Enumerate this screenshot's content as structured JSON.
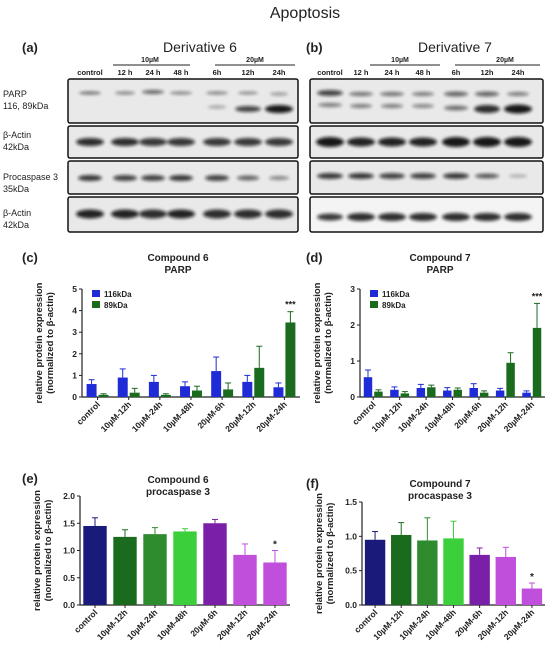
{
  "figure": {
    "title": "Apoptosis",
    "colors": {
      "blue": "#1f2bd6",
      "darkgreen": "#1b6b1e",
      "navy": "#1a1a7a",
      "midgreen": "#2e8b2e",
      "green": "#3ccf3c",
      "purple": "#7a1fa8",
      "violet": "#c04fdc"
    }
  },
  "blots": {
    "a": {
      "letter": "(a)",
      "title": "Derivative 6",
      "group1": "10µM",
      "group2": "20µM",
      "lanes": [
        "control",
        "12 h",
        "24 h",
        "48 h",
        "6h",
        "12h",
        "24h"
      ]
    },
    "b": {
      "letter": "(b)",
      "title": "Derivative 7",
      "group1": "10µM",
      "group2": "20µM",
      "lanes": [
        "control",
        "12 h",
        "24 h",
        "48 h",
        "6h",
        "12h",
        "24h"
      ]
    },
    "row_labels": [
      [
        "PARP",
        "116, 89kDa"
      ],
      [
        "β-Actin",
        "42kDa"
      ],
      [
        "Procaspase 3",
        "35kDa"
      ],
      [
        "β-Actin",
        "42kDa"
      ]
    ]
  },
  "chart_data": [
    {
      "panel": "(c)",
      "type": "bar",
      "title": "Compound 6",
      "subtitle": "PARP",
      "ylabel": [
        "relative protein expression",
        "(normalized to β-actin)"
      ],
      "ylim": [
        0,
        5
      ],
      "yticks": [
        0,
        1,
        2,
        3,
        4,
        5
      ],
      "categories": [
        "control",
        "10µM-12h",
        "10µM-24h",
        "10µM-48h",
        "20µM-6h",
        "20µM-12h",
        "20µM-24h"
      ],
      "series": [
        {
          "name": "116kDa",
          "color": "#1f2bd6",
          "values": [
            0.6,
            0.9,
            0.7,
            0.5,
            1.2,
            0.7,
            0.45
          ],
          "errors": [
            0.2,
            0.4,
            0.3,
            0.2,
            0.65,
            0.3,
            0.2
          ]
        },
        {
          "name": "89kDa",
          "color": "#1b6b1e",
          "values": [
            0.1,
            0.2,
            0.1,
            0.3,
            0.35,
            1.35,
            3.45
          ],
          "errors": [
            0.05,
            0.2,
            0.05,
            0.2,
            0.3,
            1.0,
            0.5
          ]
        }
      ],
      "annotations": [
        {
          "category": "20µM-24h",
          "series": 1,
          "text": "***"
        }
      ]
    },
    {
      "panel": "(d)",
      "type": "bar",
      "title": "Compound 7",
      "subtitle": "PARP",
      "ylabel": [
        "relative protein expression",
        "(normalized to β-actin)"
      ],
      "ylim": [
        0,
        3
      ],
      "yticks": [
        0,
        1,
        2,
        3
      ],
      "categories": [
        "control",
        "10µM-12h",
        "10µM-24h",
        "10µM-48h",
        "20µM-6h",
        "20µM-12h",
        "20µM-24h"
      ],
      "series": [
        {
          "name": "116kDa",
          "color": "#1f2bd6",
          "values": [
            0.55,
            0.2,
            0.25,
            0.18,
            0.25,
            0.18,
            0.12
          ],
          "errors": [
            0.2,
            0.08,
            0.1,
            0.08,
            0.12,
            0.06,
            0.05
          ]
        },
        {
          "name": "89kDa",
          "color": "#1b6b1e",
          "values": [
            0.15,
            0.1,
            0.27,
            0.2,
            0.12,
            0.95,
            1.92
          ],
          "errors": [
            0.05,
            0.05,
            0.06,
            0.05,
            0.05,
            0.28,
            0.68
          ]
        }
      ],
      "annotations": [
        {
          "category": "20µM-24h",
          "series": 1,
          "text": "***"
        }
      ]
    },
    {
      "panel": "(e)",
      "type": "bar",
      "title": "Compound 6",
      "subtitle": "procaspase 3",
      "ylabel": [
        "relative protein expression",
        "(normalized to β-actin)"
      ],
      "ylim": [
        0,
        2.0
      ],
      "yticks": [
        0.0,
        0.5,
        1.0,
        1.5,
        2.0
      ],
      "tickDecimals": 1,
      "categories": [
        "control",
        "10µM-12h",
        "10µM-24h",
        "10µM-48h",
        "20µM-6h",
        "20µM-12h",
        "20µM-24h"
      ],
      "values": [
        1.45,
        1.25,
        1.3,
        1.35,
        1.5,
        0.92,
        0.78
      ],
      "errors": [
        0.15,
        0.13,
        0.12,
        0.05,
        0.07,
        0.2,
        0.22
      ],
      "colors": [
        "#1a1a7a",
        "#1b6b1e",
        "#2e8b2e",
        "#3ccf3c",
        "#7a1fa8",
        "#c04fdc",
        "#c04fdc"
      ],
      "annotations": [
        {
          "category": "20µM-24h",
          "text": "*"
        }
      ]
    },
    {
      "panel": "(f)",
      "type": "bar",
      "title": "Compound 7",
      "subtitle": "procaspase 3",
      "ylabel": [
        "relative protein expression",
        "(normalized to β-actin)"
      ],
      "ylim": [
        0,
        1.5
      ],
      "yticks": [
        0.0,
        0.5,
        1.0,
        1.5
      ],
      "tickDecimals": 1,
      "categories": [
        "control",
        "10µM-12h",
        "10µM-24h",
        "10µM-48h",
        "20µM-6h",
        "20µM-12h",
        "20µM-24h"
      ],
      "values": [
        0.95,
        1.02,
        0.94,
        0.97,
        0.73,
        0.7,
        0.24
      ],
      "errors": [
        0.12,
        0.18,
        0.33,
        0.25,
        0.1,
        0.14,
        0.08
      ],
      "colors": [
        "#1a1a7a",
        "#1b6b1e",
        "#2e8b2e",
        "#3ccf3c",
        "#7a1fa8",
        "#c04fdc",
        "#c04fdc"
      ],
      "annotations": [
        {
          "category": "20µM-24h",
          "text": "*"
        }
      ]
    }
  ]
}
